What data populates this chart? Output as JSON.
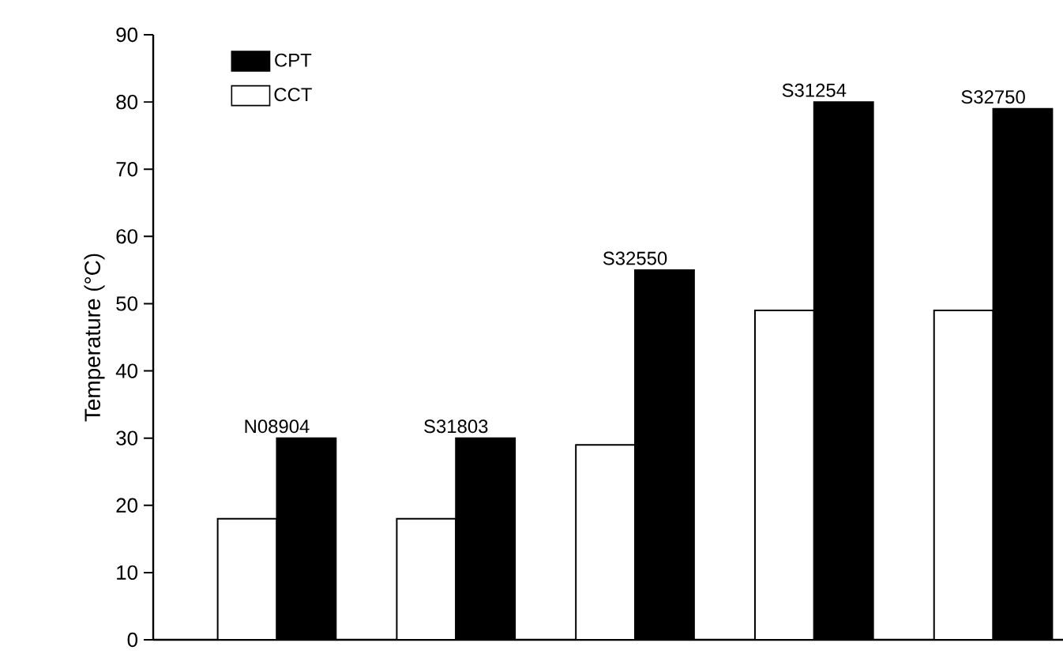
{
  "chart_data": {
    "type": "bar",
    "ylabel": "Temperature (°C)",
    "categories": [
      "N08904",
      "S31803",
      "S32550",
      "S31254",
      "S32750"
    ],
    "series": [
      {
        "name": "CCT",
        "color": "#ffffff",
        "values": [
          18,
          18,
          29,
          49,
          49
        ]
      },
      {
        "name": "CPT",
        "color": "#000000",
        "values": [
          30,
          30,
          55,
          80,
          79
        ]
      }
    ],
    "ylim": [
      0,
      90
    ],
    "yticks": [
      0,
      10,
      20,
      30,
      40,
      50,
      60,
      70,
      80,
      90
    ],
    "grid": false,
    "legend": "top left"
  }
}
